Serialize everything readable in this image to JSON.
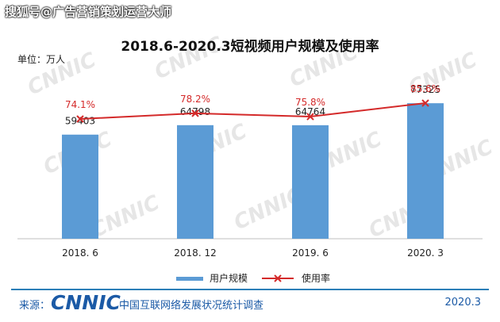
{
  "watermark_top": "搜狐号@广告营销策划运营大师",
  "watermark_bg": "CNNIC",
  "unit_label": "单位：万人",
  "footer": {
    "source_label": "来源：",
    "logo": "CNNIC",
    "org": "中国互联网络发展状况统计调查",
    "date": "2020.3"
  },
  "colors": {
    "bar": "#5b9bd5",
    "line": "#d42a2a",
    "footer": "#1b5aa6"
  },
  "chart_data": {
    "type": "bar+line",
    "title": "2018.6-2020.3短视频用户规模及使用率",
    "categories": [
      "2018. 6",
      "2018. 12",
      "2019. 6",
      "2020. 3"
    ],
    "series": [
      {
        "name": "用户规模",
        "type": "bar",
        "values": [
          59403,
          64798,
          64764,
          77325
        ],
        "labels": [
          "59403",
          "64798",
          "64764",
          "77325"
        ]
      },
      {
        "name": "使用率",
        "type": "line",
        "values": [
          74.1,
          78.2,
          75.8,
          85.6
        ],
        "labels": [
          "74.1%",
          "78.2%",
          "75.8%",
          "85.6%"
        ]
      }
    ],
    "bar_ylim": [
      0,
      105000
    ],
    "line_ylim": [
      0,
      100
    ],
    "legend_position": "bottom"
  }
}
